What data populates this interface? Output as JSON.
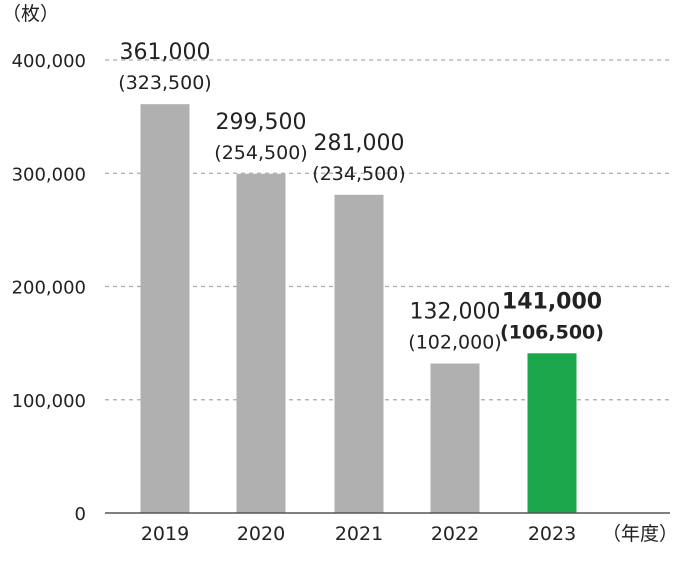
{
  "chart_data": {
    "type": "bar",
    "y_unit_label": "（枚）",
    "x_unit_label": "（年度）",
    "categories": [
      "2019",
      "2020",
      "2021",
      "2022",
      "2023"
    ],
    "values": [
      361000,
      299500,
      281000,
      132000,
      141000
    ],
    "value_labels": [
      "361,000",
      "299,500",
      "281,000",
      "132,000",
      "141,000"
    ],
    "sub_labels": [
      "(323,500)",
      "(254,500)",
      "(234,500)",
      "(102,000)",
      "(106,500)"
    ],
    "highlight_index": 4,
    "ylim": [
      0,
      400000
    ],
    "yticks": [
      0,
      100000,
      200000,
      300000,
      400000
    ],
    "ytick_labels": [
      "0",
      "100,000",
      "200,000",
      "300,000",
      "400,000"
    ],
    "grid": "horizontal-dashed",
    "legend": "none",
    "colors": {
      "bar": "#b0b0b0",
      "highlight": "#1aa64a",
      "grid": "#aaaaaa",
      "axis": "#555555",
      "text": "#222222"
    }
  }
}
